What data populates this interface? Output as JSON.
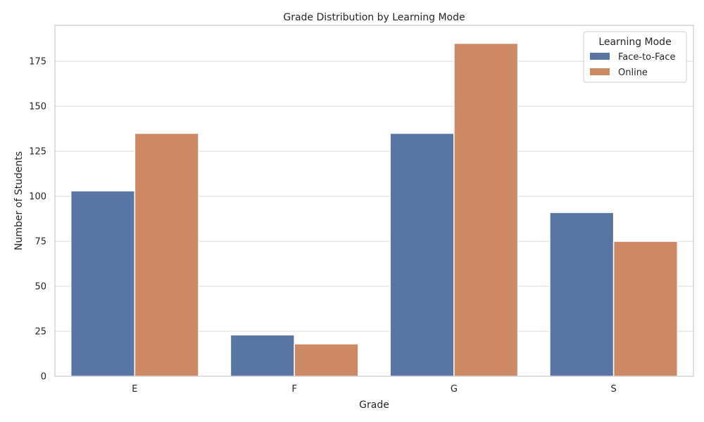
{
  "chart_data": {
    "type": "bar",
    "title": "Grade Distribution by Learning Mode",
    "xlabel": "Grade",
    "ylabel": "Number of Students",
    "categories": [
      "E",
      "F",
      "G",
      "S"
    ],
    "series": [
      {
        "name": "Face-to-Face",
        "values": [
          103,
          23,
          135,
          91
        ],
        "color": "#5875a4"
      },
      {
        "name": "Online",
        "values": [
          135,
          18,
          185,
          75
        ],
        "color": "#cc8963"
      }
    ],
    "ylim": [
      0,
      195
    ],
    "yticks": [
      0,
      25,
      50,
      75,
      100,
      125,
      150,
      175
    ],
    "grid": "horizontal",
    "legend": {
      "title": "Learning Mode",
      "position": "top-right"
    }
  }
}
